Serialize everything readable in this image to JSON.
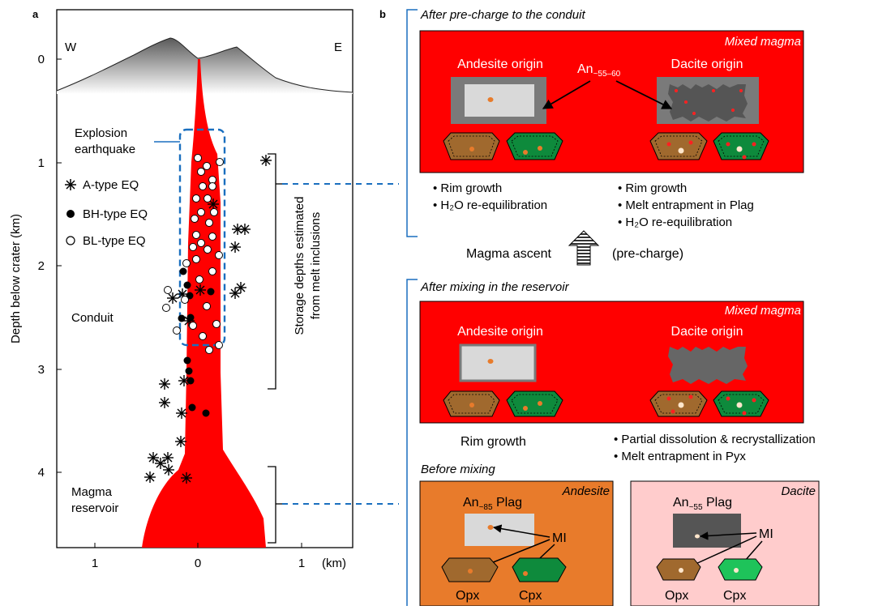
{
  "panel_a": {
    "label": "a",
    "west": "W",
    "east": "E",
    "y_axis_label": "Depth below crater (km)",
    "y_ticks": [
      "0",
      "1",
      "2",
      "3",
      "4"
    ],
    "x_ticks": [
      "1",
      "0",
      "1"
    ],
    "x_unit": "(km)",
    "explosion_label_1": "Explosion",
    "explosion_label_2": "earthquake",
    "conduit_label": "Conduit",
    "reservoir_label_1": "Magma",
    "reservoir_label_2": "reservoir",
    "storage_label_1": "Storage depths estimated",
    "storage_label_2": "from melt inclusions",
    "legend": [
      {
        "symbol": "asterisk",
        "label": "A-type EQ"
      },
      {
        "symbol": "filled-circle",
        "label": "BH-type EQ"
      },
      {
        "symbol": "open-circle",
        "label": "BL-type EQ"
      }
    ]
  },
  "panel_b": {
    "label": "b",
    "stage1_title": "After pre-charge to the conduit",
    "stage2_title": "After mixing in the reservoir",
    "stage3_title": "Before mixing",
    "mixed_magma": "Mixed magma",
    "andesite_origin": "Andesite origin",
    "dacite_origin": "Dacite origin",
    "an_prefix": "An",
    "an_mixed_sub": "~55–60",
    "an_andesite_sub": "~85",
    "an_dacite_sub": "~55",
    "plag": "Plag",
    "mi": "MI",
    "opx": "Opx",
    "cpx": "Cpx",
    "andesite": "Andesite",
    "dacite": "Dacite",
    "ascent_label": "Magma ascent",
    "ascent_note": "(pre-charge)",
    "stage1_andesite_notes": [
      "• Rim growth",
      "• H₂O re-equilibration"
    ],
    "stage1_dacite_notes": [
      "• Rim growth",
      "• Melt entrapment in Plag",
      "• H₂O re-equilibration"
    ],
    "stage2_andesite_note": "Rim growth",
    "stage2_dacite_notes": [
      "• Partial dissolution & recrystallization",
      "• Melt entrapment in Pyx"
    ]
  },
  "colors": {
    "magma_red": "#ff0000",
    "andesite_orange": "#e87b2b",
    "dacite_pink": "#ffcccc",
    "bracket_blue": "#1a6fbf",
    "opx_brown": "#a0692e",
    "cpx_green": "#0e8a3c"
  }
}
